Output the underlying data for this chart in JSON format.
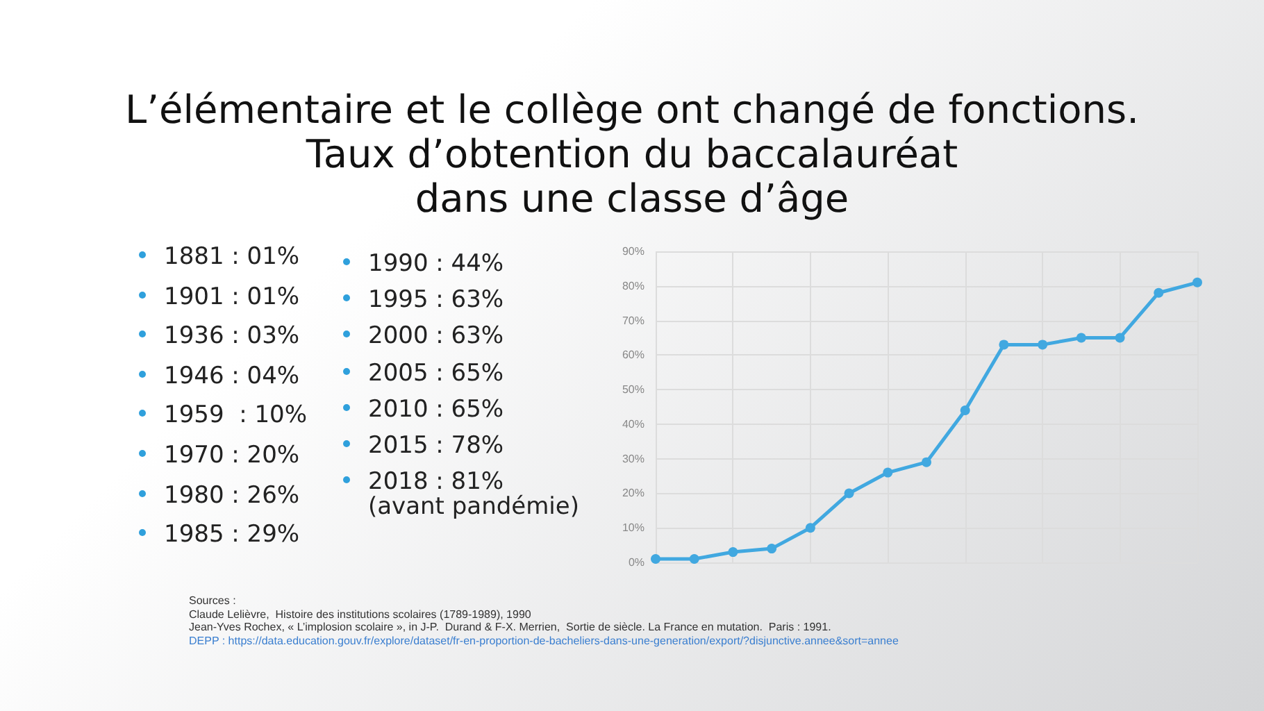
{
  "chart_data": {
    "type": "line",
    "title": "L’élémentaire et le collège ont changé de fonctions.\nTaux d’obtention du baccalauréat\ndans une classe d’âge",
    "categories": [
      null,
      null,
      null,
      null,
      null,
      null,
      null,
      null,
      null,
      null,
      null,
      null,
      null,
      null,
      null
    ],
    "series": [
      {
        "color": "#41a8e0",
        "values": [
          1,
          1,
          3,
          4,
          10,
          20,
          26,
          29,
          44,
          63,
          63,
          65,
          65,
          78,
          81
        ]
      }
    ],
    "ylim": [
      0,
      90
    ],
    "yticks": [
      {
        "value": 0,
        "label": "0%"
      },
      {
        "value": 10,
        "label": "10%"
      },
      {
        "value": 20,
        "label": "20%"
      },
      {
        "value": 30,
        "label": "30%"
      },
      {
        "value": 40,
        "label": "40%"
      },
      {
        "value": 50,
        "label": "50%"
      },
      {
        "value": 60,
        "label": "60%"
      },
      {
        "value": 70,
        "label": "70%"
      },
      {
        "value": 80,
        "label": "80%"
      },
      {
        "value": 90,
        "label": "90%"
      }
    ],
    "tick_labels": "y",
    "grid": true,
    "marker": "circle",
    "line_style": "solid",
    "annotations": [
      "1881 : 01%",
      "1901 : 01%",
      "1936 : 03%",
      "1946 : 04%",
      "1959  : 10%",
      "1970 : 20%",
      "1980 : 26%",
      "1985 : 29%",
      "1990 : 44%",
      "1995 : 63%",
      "2000 : 63%",
      "2005 : 65%",
      "2010 : 65%",
      "2015 : 78%",
      "2018 : 81%\n(avant pandémie)",
      "Sources :",
      "Claude Lelièvre,  Histoire des institutions scolaires (1789-1989), 1990",
      "Jean-Yves Rochex, « L’implosion scolaire », in J-P.  Durand & F-X. Merrien,  Sortie de siècle. La France en mutation.  Paris : 1991.",
      "DEPP : https://data.education.gouv.fr/explore/dataset/fr-en-proportion-de-bacheliers-dans-une-generation/export/?disjunctive.annee&sort=annee"
    ]
  }
}
